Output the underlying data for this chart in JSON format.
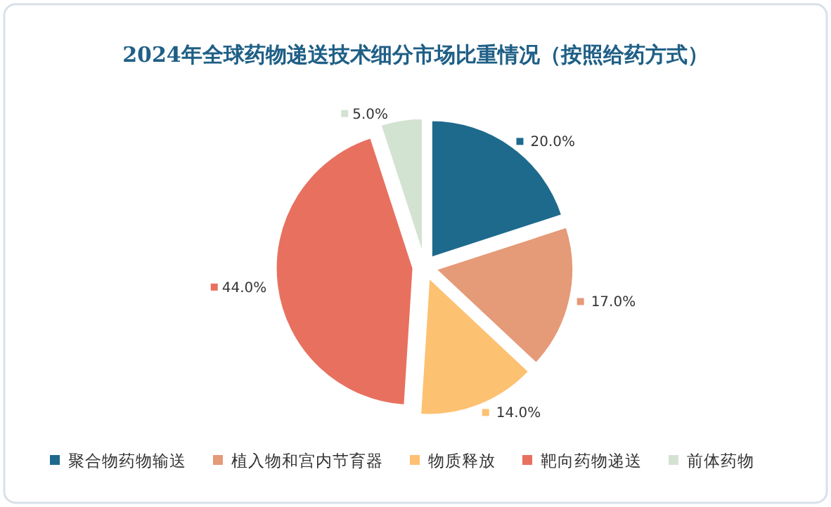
{
  "chart_data": {
    "type": "pie",
    "title": "2024年全球药物递送技术细分市场比重情况（按照给药方式）",
    "categories": [
      "聚合物药物输送",
      "植入物和宫内节育器",
      "物质释放",
      "靶向药物递送",
      "前体药物"
    ],
    "values": [
      20,
      17,
      14,
      44,
      5
    ],
    "colors": [
      "#1e6a8d",
      "#e59a78",
      "#fdc172",
      "#e8705f",
      "#d3e3d2"
    ],
    "value_labels": [
      "20.0%",
      "17.0%",
      "14.0%",
      "44.0%",
      "5.0%"
    ],
    "legend": "bottom"
  }
}
